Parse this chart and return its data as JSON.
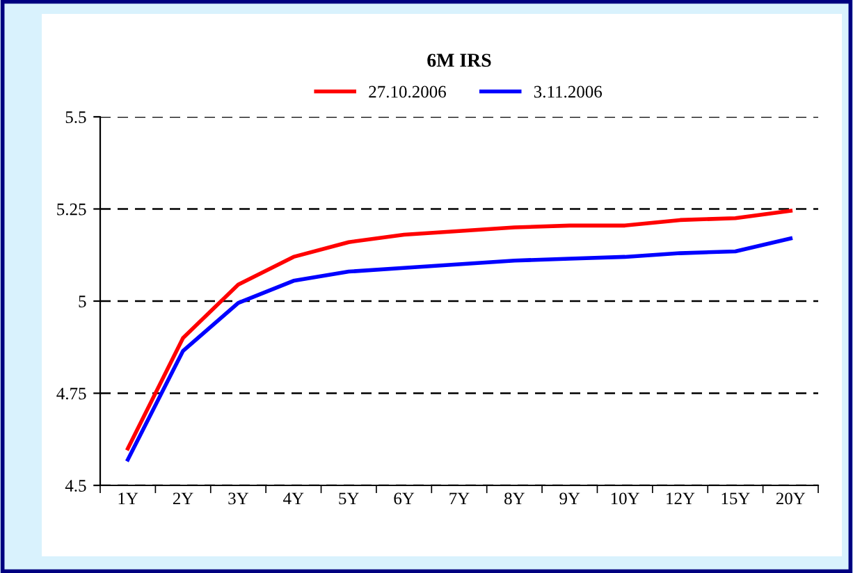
{
  "chart_data": {
    "type": "line",
    "title": "6M IRS",
    "categories": [
      "1Y",
      "2Y",
      "3Y",
      "4Y",
      "5Y",
      "6Y",
      "7Y",
      "8Y",
      "9Y",
      "10Y",
      "12Y",
      "15Y",
      "20Y"
    ],
    "series": [
      {
        "name": "27.10.2006",
        "color": "#ff0000",
        "values": [
          4.6,
          4.9,
          5.045,
          5.12,
          5.16,
          5.18,
          5.19,
          5.2,
          5.205,
          5.205,
          5.22,
          5.225,
          5.245
        ]
      },
      {
        "name": "3.11.2006",
        "color": "#0000ff",
        "values": [
          4.57,
          4.865,
          4.995,
          5.055,
          5.08,
          5.09,
          5.1,
          5.11,
          5.115,
          5.12,
          5.13,
          5.135,
          5.17
        ]
      }
    ],
    "ylim": [
      4.5,
      5.5
    ],
    "yticks": [
      4.5,
      4.75,
      5,
      5.25,
      5.5
    ],
    "grid": "y",
    "legend": "top",
    "line_style": "solid",
    "marker": "none"
  }
}
